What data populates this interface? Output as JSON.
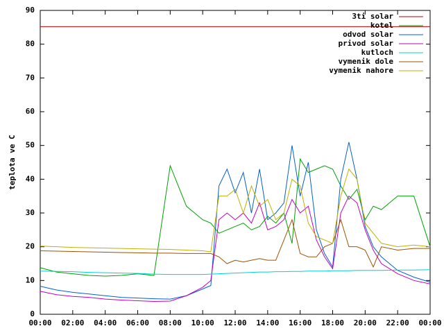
{
  "chart_data": {
    "type": "line",
    "y_label": "teplota ve C",
    "x": [
      0,
      1,
      2,
      3,
      4,
      5,
      6,
      7,
      8,
      9,
      10,
      10.5,
      11,
      11.5,
      12,
      12.5,
      13,
      13.5,
      14,
      14.5,
      15,
      15.5,
      16,
      16.5,
      17,
      17.5,
      18,
      18.5,
      19,
      19.5,
      20,
      20.5,
      21,
      22,
      23,
      24
    ],
    "xlim": [
      0,
      24
    ],
    "xticks": [
      {
        "value": 0,
        "label": "00:00"
      },
      {
        "value": 2,
        "label": "02:00"
      },
      {
        "value": 4,
        "label": "04:00"
      },
      {
        "value": 6,
        "label": "06:00"
      },
      {
        "value": 8,
        "label": "08:00"
      },
      {
        "value": 10,
        "label": "10:00"
      },
      {
        "value": 12,
        "label": "12:00"
      },
      {
        "value": 14,
        "label": "14:00"
      },
      {
        "value": 16,
        "label": "16:00"
      },
      {
        "value": 18,
        "label": "18:00"
      },
      {
        "value": 20,
        "label": "20:00"
      },
      {
        "value": 22,
        "label": "22:00"
      },
      {
        "value": 24,
        "label": "00:00"
      }
    ],
    "ylim": [
      0,
      90
    ],
    "yticks": [
      0,
      10,
      20,
      30,
      40,
      50,
      60,
      70,
      80,
      90
    ],
    "grid": false,
    "legend": "top-right",
    "series": [
      {
        "name": "3ti solar",
        "color": "#c00000",
        "values": [
          85.2,
          85.2,
          85.2,
          85.2,
          85.2,
          85.2,
          85.2,
          85.2,
          85.2,
          85.2,
          85.2,
          85.2,
          85.2,
          85.2,
          85.2,
          85.2,
          85.2,
          85.2,
          85.2,
          85.2,
          85.2,
          85.2,
          85.2,
          85.2,
          85.2,
          85.2,
          85.2,
          85.2,
          85.2,
          85.2,
          85.2,
          85.2,
          85.2,
          85.2,
          85.2,
          85.2
        ]
      },
      {
        "name": "kotel",
        "color": "#00a000",
        "values": [
          13.8,
          12.5,
          12,
          11.5,
          11.3,
          11.5,
          12,
          11.5,
          44,
          32,
          28,
          27,
          24,
          25,
          26,
          27,
          25,
          26,
          29,
          27,
          30,
          21,
          46,
          42,
          43,
          44,
          43,
          38,
          34,
          37,
          28,
          32,
          31,
          35,
          35,
          20
        ]
      },
      {
        "name": "odvod solar",
        "color": "#0060d0",
        "values": [
          8.3,
          7.2,
          6.5,
          6,
          5.5,
          5,
          4.8,
          4.6,
          4.5,
          5.5,
          7.5,
          8.5,
          38,
          43,
          36,
          42,
          30,
          43,
          28,
          30,
          33,
          50,
          35,
          45,
          25,
          18,
          14,
          40,
          51,
          40,
          26,
          20,
          17,
          13,
          11,
          9.5
        ]
      },
      {
        "name": "privod solar",
        "color": "#c000c0",
        "values": [
          6.8,
          5.8,
          5.3,
          5,
          4.5,
          4.2,
          4,
          3.8,
          3.9,
          5.5,
          8,
          10,
          28,
          30,
          28,
          30,
          27,
          33,
          25,
          26,
          28,
          34,
          30,
          32,
          22,
          17,
          13.5,
          30,
          35,
          33,
          25,
          19,
          15,
          12,
          10,
          9
        ]
      },
      {
        "name": "kutloch",
        "color": "#00d0d0",
        "values": [
          12.8,
          12.7,
          12.6,
          12.4,
          12.3,
          12.2,
          12.1,
          11.9,
          11.8,
          11.8,
          11.8,
          11.9,
          12,
          12.1,
          12.2,
          12.3,
          12.4,
          12.5,
          12.5,
          12.6,
          12.6,
          12.7,
          12.7,
          12.8,
          12.8,
          12.8,
          12.9,
          12.9,
          12.9,
          13,
          13,
          13,
          13,
          13.1,
          13.1,
          13.2
        ]
      },
      {
        "name": "vymenik dole",
        "color": "#a05000",
        "values": [
          18.8,
          18.7,
          18.6,
          18.5,
          18.4,
          18.3,
          18.2,
          18.1,
          18.1,
          18,
          18,
          18,
          17,
          15,
          16,
          15.5,
          16,
          16.5,
          16,
          16,
          22,
          28,
          18,
          17,
          17,
          20,
          21,
          28,
          20,
          20,
          19,
          14,
          20,
          19,
          19.5,
          19.5
        ]
      },
      {
        "name": "vymenik nahore",
        "color": "#c0b000",
        "values": [
          20.2,
          20,
          19.8,
          19.7,
          19.6,
          19.5,
          19.4,
          19.3,
          19.2,
          19,
          18.8,
          18.5,
          35,
          35,
          37,
          30,
          38,
          32,
          34,
          28,
          30,
          40,
          38,
          27,
          23,
          22,
          21,
          35,
          43,
          40,
          27,
          24,
          21,
          20,
          20.5,
          20
        ]
      }
    ]
  }
}
